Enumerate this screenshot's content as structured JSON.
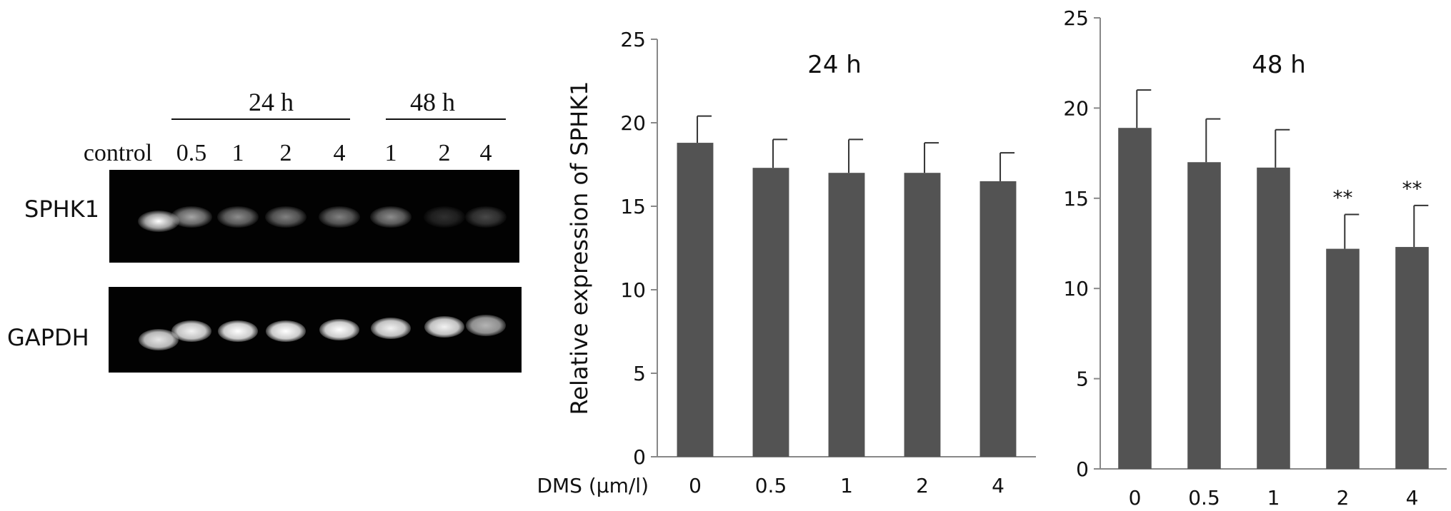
{
  "gel": {
    "time_24_label": "24 h",
    "time_48_label": "48 h",
    "lanes": [
      {
        "label": "control",
        "sphk1": 1.0,
        "gapdh": 0.9
      },
      {
        "label": "0.5",
        "sphk1": 0.65,
        "gapdh": 0.95
      },
      {
        "label": "1",
        "sphk1": 0.55,
        "gapdh": 1.0
      },
      {
        "label": "2",
        "sphk1": 0.5,
        "gapdh": 1.0
      },
      {
        "label": "4",
        "sphk1": 0.5,
        "gapdh": 1.0
      },
      {
        "label": "1",
        "sphk1": 0.55,
        "gapdh": 0.95
      },
      {
        "label": "2",
        "sphk1": 0.18,
        "gapdh": 0.95
      },
      {
        "label": "4",
        "sphk1": 0.28,
        "gapdh": 0.7
      }
    ],
    "gene_sphk1": "SPHK1",
    "gene_gapdh": "GAPDH"
  },
  "chart_data": [
    {
      "type": "bar",
      "title": "24 h",
      "xlabel": "DMS (μm/l)",
      "ylabel": "Relative expression of SPHK1",
      "ylim": [
        0,
        25
      ],
      "yticks": [
        0,
        5,
        10,
        15,
        20,
        25
      ],
      "categories": [
        "0",
        "0.5",
        "1",
        "2",
        "4"
      ],
      "values": [
        18.8,
        17.3,
        17.0,
        17.0,
        16.5
      ],
      "errors": [
        1.6,
        1.7,
        2.0,
        1.8,
        1.7
      ],
      "annotations": [
        "",
        "",
        "",
        "",
        ""
      ],
      "bar_color": "#535353"
    },
    {
      "type": "bar",
      "title": "48 h",
      "xlabel": "",
      "ylabel": "",
      "ylim": [
        0,
        25
      ],
      "yticks": [
        0,
        5,
        10,
        15,
        20,
        25
      ],
      "categories": [
        "0",
        "0.5",
        "1",
        "2",
        "4"
      ],
      "values": [
        18.9,
        17.0,
        16.7,
        12.2,
        12.3
      ],
      "errors": [
        2.1,
        2.4,
        2.1,
        1.9,
        2.3
      ],
      "annotations": [
        "",
        "",
        "",
        "**",
        "**"
      ],
      "bar_color": "#535353"
    }
  ]
}
